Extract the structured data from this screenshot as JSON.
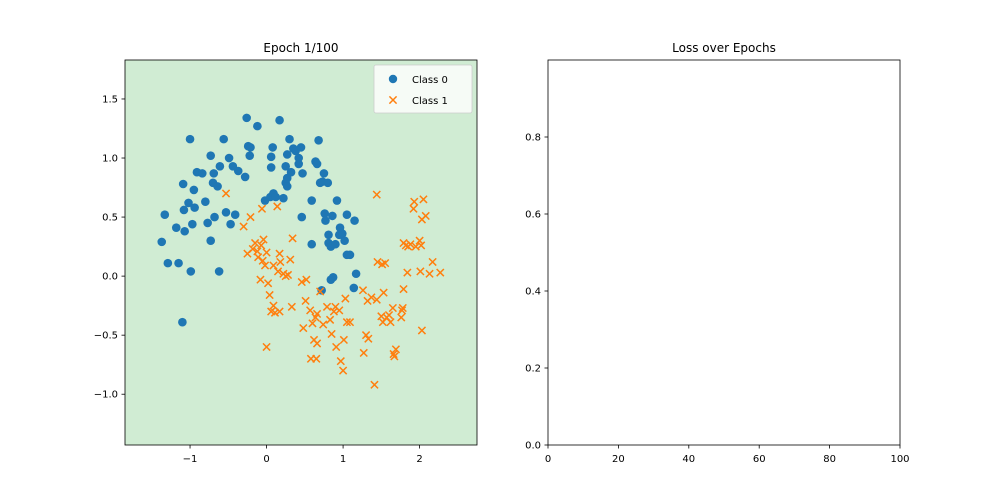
{
  "chart_data": [
    {
      "type": "scatter",
      "title": "Epoch 1/100",
      "xlabel": "",
      "ylabel": "",
      "xlim": [
        -1.85,
        2.75
      ],
      "ylim": [
        -1.43,
        1.83
      ],
      "xticks": [
        -1,
        0,
        1,
        2
      ],
      "yticks": [
        -1.0,
        -0.5,
        0.0,
        0.5,
        1.0,
        1.5
      ],
      "xtick_labels": [
        "−1",
        "0",
        "1",
        "2"
      ],
      "ytick_labels": [
        "−1.0",
        "−0.5",
        "0.0",
        "0.5",
        "1.0",
        "1.5"
      ],
      "background_color": "#d0ecd3",
      "legend_location": "upper right",
      "grid": false,
      "series": [
        {
          "name": "Class 0",
          "marker": "circle",
          "color": "#1f77b4",
          "points": [
            [
              -1.37,
              0.29
            ],
            [
              -1.33,
              0.52
            ],
            [
              -1.29,
              0.11
            ],
            [
              -1.18,
              0.41
            ],
            [
              -1.15,
              0.11
            ],
            [
              -1.09,
              0.78
            ],
            [
              -1.07,
              0.38
            ],
            [
              -1.08,
              0.56
            ],
            [
              -1.1,
              -0.39
            ],
            [
              -1.0,
              1.16
            ],
            [
              -1.02,
              0.62
            ],
            [
              -0.99,
              0.04
            ],
            [
              -0.97,
              0.44
            ],
            [
              -0.95,
              0.73
            ],
            [
              -0.94,
              0.58
            ],
            [
              -0.91,
              0.88
            ],
            [
              -0.84,
              0.87
            ],
            [
              -0.8,
              0.63
            ],
            [
              -0.77,
              0.45
            ],
            [
              -0.73,
              1.02
            ],
            [
              -0.73,
              0.3
            ],
            [
              -0.7,
              0.79
            ],
            [
              -0.69,
              0.87
            ],
            [
              -0.68,
              0.5
            ],
            [
              -0.64,
              0.76
            ],
            [
              -0.62,
              0.04
            ],
            [
              -0.61,
              0.93
            ],
            [
              -0.56,
              1.16
            ],
            [
              -0.53,
              0.54
            ],
            [
              -0.49,
              1.0
            ],
            [
              -0.47,
              0.44
            ],
            [
              -0.44,
              0.93
            ],
            [
              -0.41,
              0.52
            ],
            [
              -0.37,
              0.89
            ],
            [
              -0.28,
              0.84
            ],
            [
              -0.26,
              1.34
            ],
            [
              -0.24,
              1.1
            ],
            [
              -0.22,
              1.02
            ],
            [
              -0.21,
              1.09
            ],
            [
              -0.12,
              1.27
            ],
            [
              -0.02,
              0.64
            ],
            [
              0.05,
              0.67
            ],
            [
              0.06,
              0.92
            ],
            [
              0.06,
              1.01
            ],
            [
              0.08,
              1.09
            ],
            [
              0.09,
              0.7
            ],
            [
              0.12,
              0.67
            ],
            [
              0.17,
              1.32
            ],
            [
              0.22,
              0.66
            ],
            [
              0.25,
              0.93
            ],
            [
              0.25,
              0.79
            ],
            [
              0.27,
              0.83
            ],
            [
              0.27,
              0.76
            ],
            [
              0.27,
              1.03
            ],
            [
              0.3,
              1.16
            ],
            [
              0.32,
              0.88
            ],
            [
              0.35,
              1.08
            ],
            [
              0.38,
              1.06
            ],
            [
              0.42,
              0.95
            ],
            [
              0.42,
              1.0
            ],
            [
              0.45,
              1.09
            ],
            [
              0.46,
              0.5
            ],
            [
              0.47,
              0.87
            ],
            [
              0.59,
              0.27
            ],
            [
              0.59,
              0.64
            ],
            [
              0.64,
              0.97
            ],
            [
              0.66,
              0.95
            ],
            [
              0.68,
              1.15
            ],
            [
              0.7,
              0.79
            ],
            [
              0.72,
              -0.12
            ],
            [
              0.73,
              0.8
            ],
            [
              0.75,
              0.87
            ],
            [
              0.76,
              0.53
            ],
            [
              0.77,
              0.47
            ],
            [
              0.8,
              0.79
            ],
            [
              0.81,
              0.35
            ],
            [
              0.81,
              0.28
            ],
            [
              0.84,
              0.25
            ],
            [
              0.84,
              -0.03
            ],
            [
              0.86,
              0.51
            ],
            [
              0.87,
              -0.01
            ],
            [
              0.9,
              0.27
            ],
            [
              0.92,
              0.64
            ],
            [
              0.95,
              0.35
            ],
            [
              0.96,
              0.41
            ],
            [
              0.99,
              0.36
            ],
            [
              1.02,
              0.3
            ],
            [
              1.05,
              0.18
            ],
            [
              1.05,
              0.52
            ],
            [
              1.09,
              0.18
            ],
            [
              1.14,
              -0.1
            ],
            [
              1.15,
              0.47
            ],
            [
              1.17,
              0.02
            ]
          ]
        },
        {
          "name": "Class 1",
          "marker": "x",
          "color": "#ff7f0e",
          "points": [
            [
              -0.53,
              0.7
            ],
            [
              -0.3,
              0.42
            ],
            [
              -0.25,
              0.19
            ],
            [
              -0.21,
              0.5
            ],
            [
              -0.18,
              0.23
            ],
            [
              -0.15,
              0.28
            ],
            [
              -0.12,
              0.21
            ],
            [
              -0.11,
              0.16
            ],
            [
              -0.08,
              -0.03
            ],
            [
              -0.07,
              0.26
            ],
            [
              -0.06,
              0.57
            ],
            [
              -0.05,
              0.13
            ],
            [
              -0.04,
              0.31
            ],
            [
              -0.02,
              0.09
            ],
            [
              0.0,
              -0.6
            ],
            [
              0.0,
              0.2
            ],
            [
              0.02,
              -0.06
            ],
            [
              0.04,
              -0.16
            ],
            [
              0.06,
              -0.3
            ],
            [
              0.09,
              -0.25
            ],
            [
              0.09,
              0.09
            ],
            [
              0.11,
              -0.31
            ],
            [
              0.14,
              0.59
            ],
            [
              0.15,
              0.04
            ],
            [
              0.17,
              0.19
            ],
            [
              0.17,
              -0.3
            ],
            [
              0.18,
              0.12
            ],
            [
              0.22,
              0.02
            ],
            [
              0.25,
              0.0
            ],
            [
              0.28,
              0.01
            ],
            [
              0.31,
              0.14
            ],
            [
              0.33,
              -0.26
            ],
            [
              0.34,
              0.32
            ],
            [
              0.46,
              -0.05
            ],
            [
              0.48,
              -0.44
            ],
            [
              0.51,
              -0.21
            ],
            [
              0.52,
              -0.03
            ],
            [
              0.57,
              -0.29
            ],
            [
              0.58,
              -0.7
            ],
            [
              0.6,
              -0.4
            ],
            [
              0.62,
              -0.54
            ],
            [
              0.64,
              -0.35
            ],
            [
              0.65,
              -0.7
            ],
            [
              0.66,
              -0.57
            ],
            [
              0.66,
              -0.32
            ],
            [
              0.7,
              -0.13
            ],
            [
              0.74,
              -0.41
            ],
            [
              0.79,
              -0.26
            ],
            [
              0.83,
              -0.37
            ],
            [
              0.85,
              -0.49
            ],
            [
              0.88,
              -0.3
            ],
            [
              0.9,
              -0.26
            ],
            [
              0.91,
              -0.6
            ],
            [
              0.95,
              -0.29
            ],
            [
              0.97,
              -0.72
            ],
            [
              1.0,
              -0.8
            ],
            [
              1.01,
              -0.54
            ],
            [
              1.03,
              -0.19
            ],
            [
              1.05,
              -0.39
            ],
            [
              1.09,
              -0.39
            ],
            [
              1.26,
              -0.12
            ],
            [
              1.27,
              -0.65
            ],
            [
              1.3,
              -0.5
            ],
            [
              1.32,
              -0.21
            ],
            [
              1.33,
              -0.53
            ],
            [
              1.37,
              -0.18
            ],
            [
              1.41,
              -0.92
            ],
            [
              1.44,
              -0.2
            ],
            [
              1.44,
              0.69
            ],
            [
              1.45,
              0.12
            ],
            [
              1.5,
              -0.34
            ],
            [
              1.51,
              0.1
            ],
            [
              1.52,
              -0.39
            ],
            [
              1.53,
              -0.14
            ],
            [
              1.55,
              0.11
            ],
            [
              1.57,
              -0.35
            ],
            [
              1.6,
              -0.33
            ],
            [
              1.62,
              -0.39
            ],
            [
              1.65,
              -0.27
            ],
            [
              1.66,
              -0.66
            ],
            [
              1.67,
              -0.68
            ],
            [
              1.69,
              -0.62
            ],
            [
              1.76,
              -0.35
            ],
            [
              1.77,
              -0.29
            ],
            [
              1.78,
              -0.27
            ],
            [
              1.79,
              -0.11
            ],
            [
              1.79,
              0.28
            ],
            [
              1.82,
              0.26
            ],
            [
              1.84,
              0.03
            ],
            [
              1.85,
              0.25
            ],
            [
              1.88,
              0.27
            ],
            [
              1.92,
              0.57
            ],
            [
              1.93,
              0.63
            ],
            [
              1.95,
              0.25
            ],
            [
              2.0,
              0.3
            ],
            [
              2.01,
              0.04
            ],
            [
              2.02,
              0.26
            ],
            [
              2.03,
              0.48
            ],
            [
              2.03,
              -0.46
            ],
            [
              2.05,
              0.65
            ],
            [
              2.08,
              0.51
            ],
            [
              2.13,
              0.02
            ],
            [
              2.17,
              0.12
            ],
            [
              2.27,
              0.03
            ]
          ]
        }
      ]
    },
    {
      "type": "line",
      "title": "Loss over Epochs",
      "xlabel": "",
      "ylabel": "",
      "xlim": [
        0,
        100
      ],
      "ylim": [
        0.0,
        1.0
      ],
      "xticks": [
        0,
        20,
        40,
        60,
        80,
        100
      ],
      "yticks": [
        0.0,
        0.2,
        0.4,
        0.6,
        0.8
      ],
      "xtick_labels": [
        "0",
        "20",
        "40",
        "60",
        "80",
        "100"
      ],
      "ytick_labels": [
        "0.0",
        "0.2",
        "0.4",
        "0.6",
        "0.8"
      ],
      "grid": false,
      "series": []
    }
  ]
}
